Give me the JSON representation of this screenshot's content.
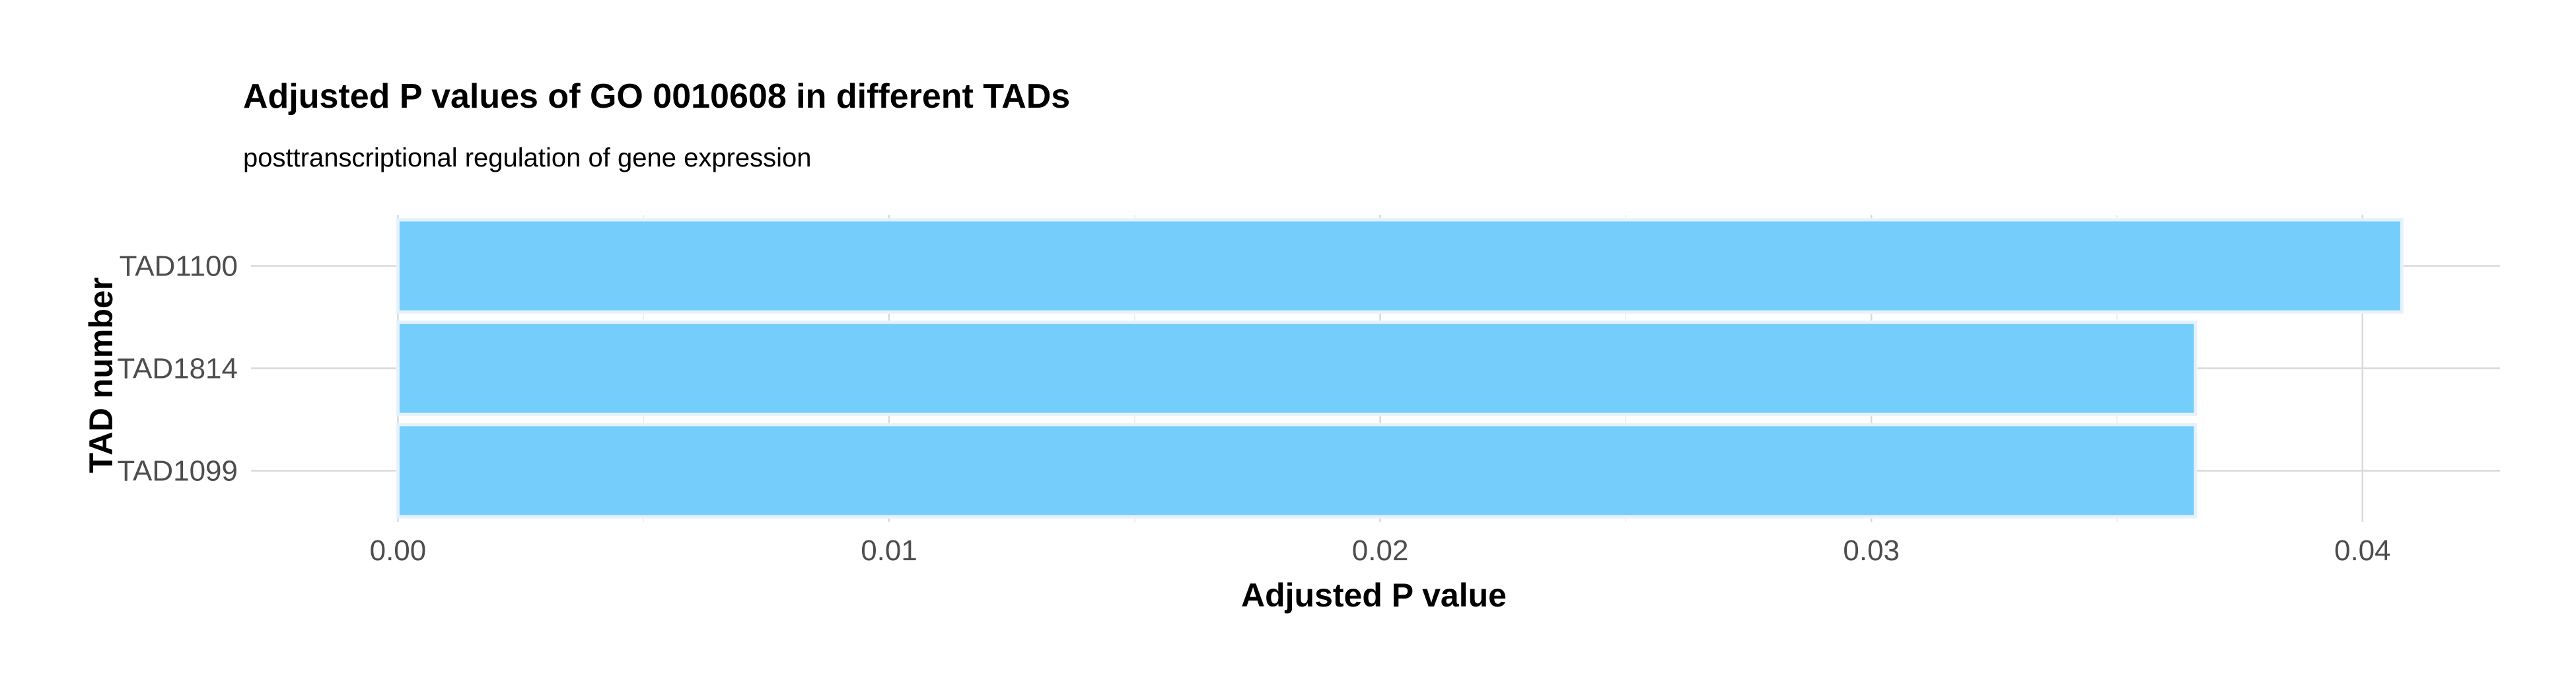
{
  "chart_data": {
    "type": "bar",
    "orientation": "horizontal",
    "title": "Adjusted P values of GO 0010608 in different TADs",
    "subtitle": "posttranscriptional regulation of gene expression",
    "xlabel": "Adjusted P value",
    "ylabel": "TAD number",
    "categories": [
      "TAD1100",
      "TAD1814",
      "TAD1099"
    ],
    "values": [
      0.0408,
      0.0366,
      0.0366
    ],
    "xlim": [
      -0.00205,
      0.0428
    ],
    "xticks": [
      0.0,
      0.01,
      0.02,
      0.03,
      0.04
    ],
    "xtick_labels": [
      "0.00",
      "0.01",
      "0.02",
      "0.03",
      "0.04"
    ],
    "grid": true,
    "legend": "none",
    "colors": {
      "bar_fill": "#74cdfb",
      "bar_outline": "#e6f2fb",
      "grid": "#d9d9d9"
    }
  }
}
